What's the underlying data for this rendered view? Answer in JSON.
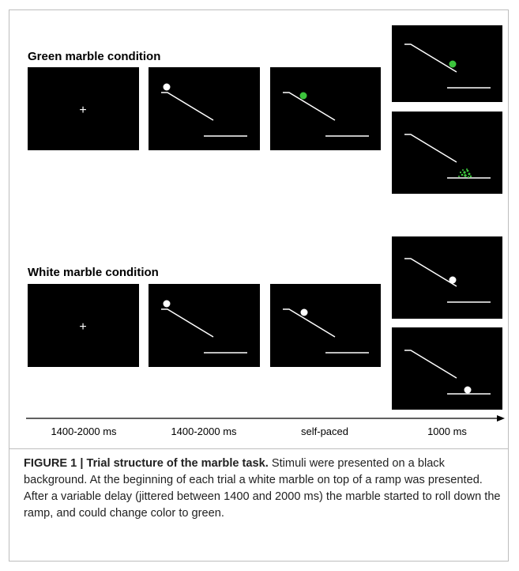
{
  "conditions": {
    "green": {
      "title": "Green marble condition"
    },
    "white": {
      "title": "White marble condition"
    }
  },
  "fixation_symbol": "+",
  "colors": {
    "panel_background": "#000000",
    "ramp": "#ffffff",
    "white_marble": "#ffffff",
    "green_marble": "#3cc43c"
  },
  "timeline": {
    "labels": [
      "1400-2000 ms",
      "1400-2000 ms",
      "self-paced",
      "1000 ms"
    ]
  },
  "caption": {
    "label": "FIGURE 1 | Trial structure of the marble task.",
    "text": " Stimuli were presented on a black background. At the beginning of each trial a white marble on top of a ramp was presented. After a variable delay (jittered between 1400 and 2000 ms) the marble started to roll down the ramp, and could change color to green."
  }
}
